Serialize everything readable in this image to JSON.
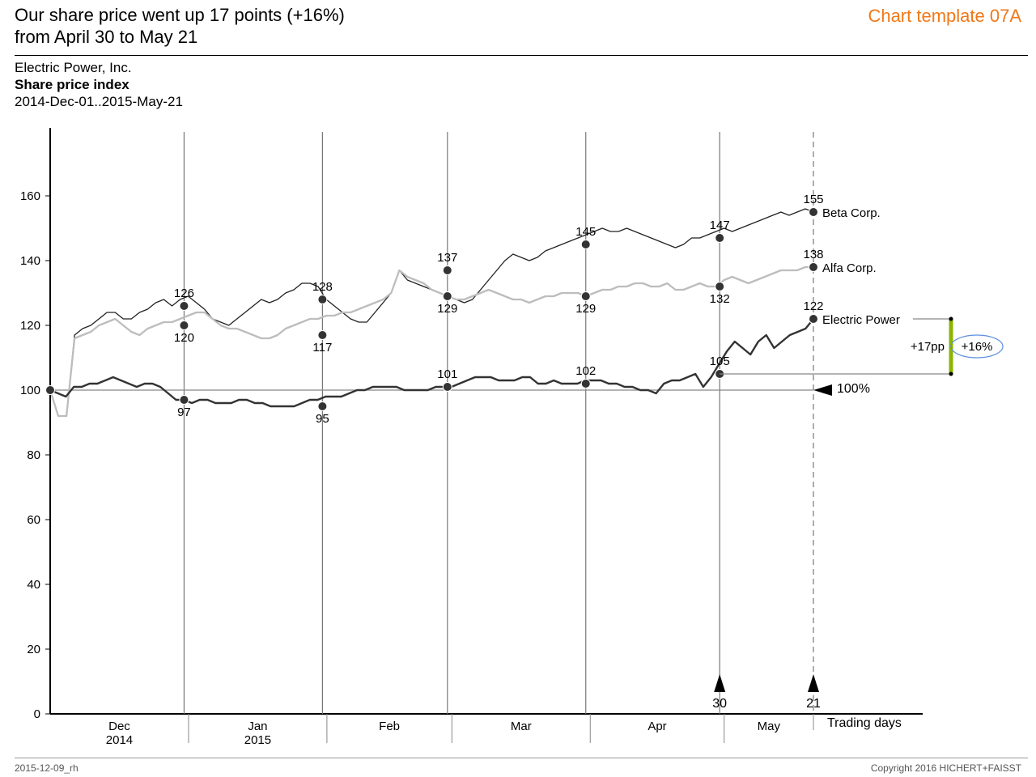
{
  "header": {
    "headline_line1": "Our share price went up 17 points (+16%)",
    "headline_line2": "from April 30 to May 21",
    "template_tag": "Chart template 07A",
    "company": "Electric Power, Inc.",
    "measure": "Share price index",
    "period": "2014-Dec-01..2015-May-21"
  },
  "footer": {
    "left": "2015-12-09_rh",
    "right": "Copyright 2016 HICHERT+FAISST"
  },
  "colors": {
    "electric": "#333333",
    "beta": "#222222",
    "alfa": "#bdbdbd",
    "accent_bar": "#8db400",
    "highlight_ellipse": "#5b8fe0",
    "title_orange": "#f07818"
  },
  "chart_data": {
    "type": "line",
    "ylim": [
      0,
      175
    ],
    "yticks": [
      "0",
      "20",
      "40",
      "60",
      "80",
      "100",
      "120",
      "140",
      "160"
    ],
    "x_unit_label": "Trading days",
    "months": [
      {
        "label": "Dec",
        "year": "2014"
      },
      {
        "label": "Jan",
        "year": "2015"
      },
      {
        "label": "Feb",
        "year": ""
      },
      {
        "label": "Mar",
        "year": ""
      },
      {
        "label": "Apr",
        "year": ""
      },
      {
        "label": "May",
        "year": ""
      }
    ],
    "month_starts": [
      "2014-12-01",
      "2015-01-01",
      "2015-02-01",
      "2015-03-01",
      "2015-04-01",
      "2015-05-01"
    ],
    "end_date": "2015-05-21",
    "reference_lines": [
      {
        "date": "2014-12-31",
        "style": "solid"
      },
      {
        "date": "2015-01-31",
        "style": "solid"
      },
      {
        "date": "2015-02-28",
        "style": "solid"
      },
      {
        "date": "2015-03-31",
        "style": "solid"
      },
      {
        "date": "2015-04-30",
        "style": "solid"
      },
      {
        "date": "2015-05-21",
        "style": "dashed"
      }
    ],
    "markers": [
      {
        "label": "30",
        "date": "2015-04-30"
      },
      {
        "label": "21",
        "date": "2015-05-21"
      }
    ],
    "baseline": {
      "value": 100,
      "label": "100%"
    },
    "series": [
      {
        "name": "Beta Corp.",
        "key": "beta",
        "values": [
          100,
          92,
          92,
          117,
          119,
          120,
          122,
          124,
          124,
          122,
          122,
          124,
          125,
          127,
          128,
          126,
          128,
          129,
          127,
          125,
          122,
          121,
          120,
          122,
          124,
          126,
          128,
          127,
          128,
          130,
          131,
          133,
          133,
          132,
          128,
          126,
          124,
          122,
          121,
          121,
          124,
          127,
          130,
          137,
          134,
          133,
          132,
          131,
          130,
          129,
          128,
          127,
          128,
          131,
          134,
          137,
          140,
          142,
          141,
          140,
          141,
          143,
          144,
          145,
          146,
          147,
          148,
          149,
          150,
          149,
          149,
          150,
          149,
          148,
          147,
          146,
          145,
          144,
          145,
          147,
          147,
          148,
          149,
          150,
          149,
          150,
          151,
          152,
          153,
          154,
          155,
          154,
          155,
          156,
          155
        ],
        "labeled_points": [
          {
            "date": "2014-12-31",
            "value": 126,
            "pos": "above"
          },
          {
            "date": "2015-01-31",
            "value": 128,
            "pos": "above"
          },
          {
            "date": "2015-02-28",
            "value": 137,
            "pos": "above"
          },
          {
            "date": "2015-03-31",
            "value": 145,
            "pos": "above"
          },
          {
            "date": "2015-04-30",
            "value": 147,
            "pos": "above"
          },
          {
            "date": "2015-05-21",
            "value": 155,
            "pos": "above"
          }
        ]
      },
      {
        "name": "Alfa Corp.",
        "key": "alfa",
        "values": [
          100,
          92,
          92,
          116,
          117,
          118,
          120,
          121,
          122,
          120,
          118,
          117,
          119,
          120,
          121,
          121,
          122,
          123,
          124,
          124,
          122,
          120,
          119,
          119,
          118,
          117,
          116,
          116,
          117,
          119,
          120,
          121,
          122,
          122,
          123,
          123,
          124,
          124,
          125,
          126,
          127,
          128,
          130,
          137,
          135,
          134,
          133,
          131,
          130,
          129,
          128,
          128,
          129,
          130,
          131,
          130,
          129,
          128,
          128,
          127,
          128,
          129,
          129,
          130,
          130,
          130,
          129,
          130,
          131,
          131,
          132,
          132,
          133,
          133,
          132,
          132,
          133,
          131,
          131,
          132,
          133,
          132,
          132,
          134,
          135,
          134,
          133,
          134,
          135,
          136,
          137,
          137,
          137,
          138,
          138
        ],
        "labeled_points": [
          {
            "date": "2014-12-31",
            "value": 120,
            "pos": "below"
          },
          {
            "date": "2015-01-31",
            "value": 117,
            "pos": "below"
          },
          {
            "date": "2015-02-28",
            "value": 129,
            "pos": "below"
          },
          {
            "date": "2015-03-31",
            "value": 129,
            "pos": "below"
          },
          {
            "date": "2015-04-30",
            "value": 132,
            "pos": "below"
          },
          {
            "date": "2015-05-21",
            "value": 138,
            "pos": "above"
          }
        ]
      },
      {
        "name": "Electric Power",
        "key": "electric",
        "values": [
          100,
          99,
          98,
          101,
          101,
          102,
          102,
          103,
          104,
          103,
          102,
          101,
          102,
          102,
          101,
          99,
          97,
          97,
          96,
          97,
          97,
          96,
          96,
          96,
          97,
          97,
          96,
          96,
          95,
          95,
          95,
          95,
          96,
          97,
          97,
          98,
          98,
          98,
          99,
          100,
          100,
          101,
          101,
          101,
          101,
          100,
          100,
          100,
          100,
          101,
          101,
          101,
          102,
          103,
          104,
          104,
          104,
          103,
          103,
          103,
          104,
          104,
          102,
          102,
          103,
          102,
          102,
          102,
          103,
          103,
          103,
          102,
          102,
          101,
          101,
          100,
          100,
          99,
          102,
          103,
          103,
          104,
          105,
          101,
          104,
          108,
          112,
          115,
          113,
          111,
          115,
          117,
          113,
          115,
          117,
          118,
          119,
          122
        ],
        "labeled_points": [
          {
            "date": "2014-12-31",
            "value": 97,
            "pos": "below"
          },
          {
            "date": "2015-01-31",
            "value": 95,
            "pos": "below"
          },
          {
            "date": "2015-02-28",
            "value": 101,
            "pos": "above"
          },
          {
            "date": "2015-03-31",
            "value": 102,
            "pos": "above"
          },
          {
            "date": "2015-04-30",
            "value": 105,
            "pos": "above"
          },
          {
            "date": "2015-05-21",
            "value": 122,
            "pos": "above"
          }
        ]
      }
    ],
    "start_point": {
      "date": "2014-12-01",
      "value": 100
    },
    "annotation": {
      "from_value": 105,
      "to_value": 122,
      "points_label": "+17pp",
      "percent_label": "+16%"
    }
  }
}
